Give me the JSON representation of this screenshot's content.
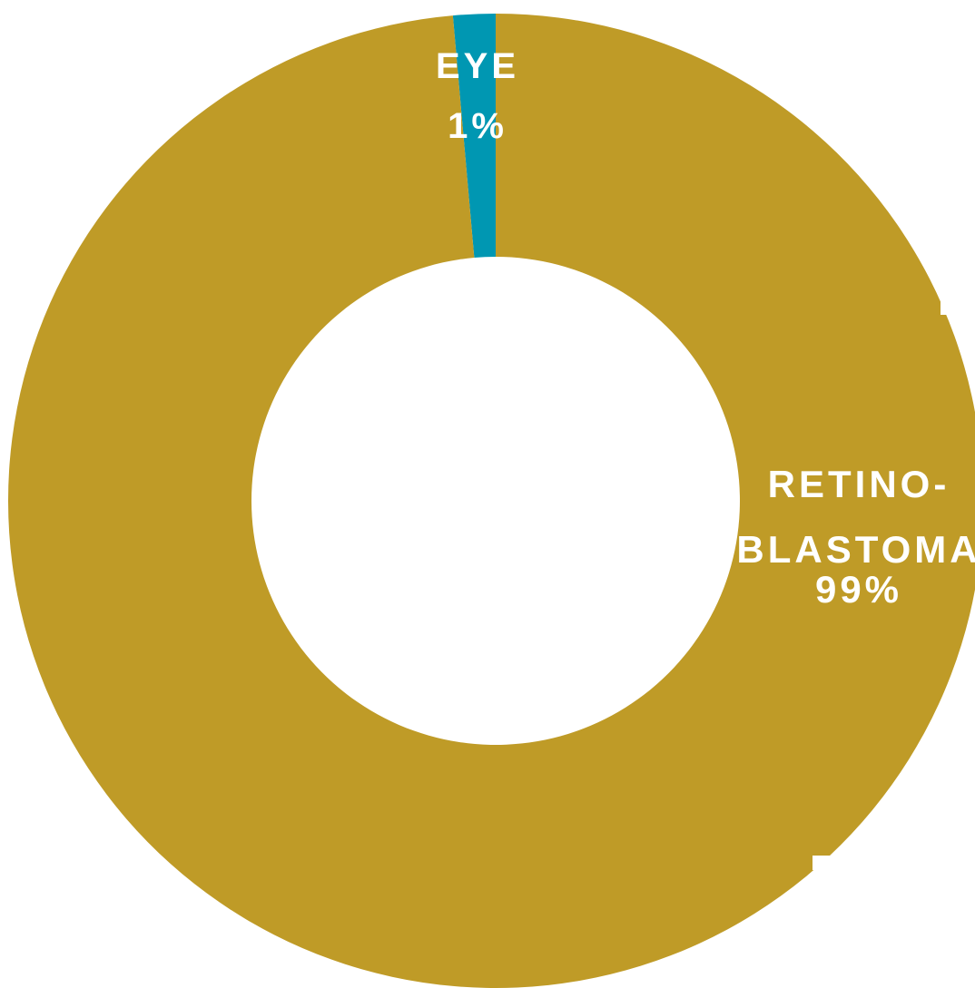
{
  "chart_data": {
    "type": "pie",
    "donut": true,
    "slices": [
      {
        "label": "EYE",
        "value_label": "1%",
        "value": 1.4,
        "color": "#0097b2"
      },
      {
        "label": "RETINO-\nBLASTOMA",
        "label_lines": [
          "RETINO-",
          "BLASTOMA"
        ],
        "value_label": "99%",
        "value": 98.6,
        "color": "#bf9b27"
      }
    ]
  },
  "colors": {
    "background": "#ffffff",
    "label_text": "#ffffff",
    "bracket_line": "#ffffff"
  }
}
